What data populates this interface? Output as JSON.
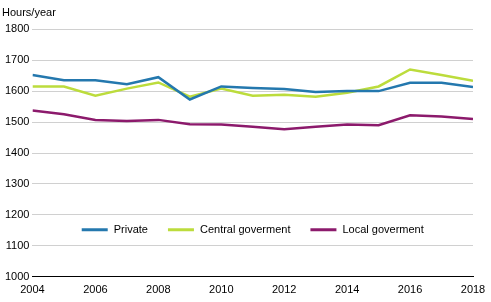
{
  "chart_data": {
    "type": "line",
    "ylabel": "Hours/year",
    "x": [
      2004,
      2005,
      2006,
      2007,
      2008,
      2009,
      2010,
      2011,
      2012,
      2013,
      2014,
      2015,
      2016,
      2017,
      2018
    ],
    "series": [
      {
        "name": "Private",
        "color": "#2478ae",
        "values": [
          1652,
          1635,
          1635,
          1622,
          1645,
          1573,
          1615,
          1610,
          1607,
          1597,
          1600,
          1600,
          1627,
          1627,
          1613
        ]
      },
      {
        "name": "Central goverment",
        "color": "#bcdc3c",
        "values": [
          1615,
          1615,
          1585,
          1608,
          1628,
          1582,
          1608,
          1585,
          1588,
          1582,
          1595,
          1615,
          1670,
          1652,
          1633
        ]
      },
      {
        "name": "Local goverment",
        "color": "#8c1a6c",
        "values": [
          1537,
          1525,
          1507,
          1503,
          1507,
          1493,
          1492,
          1485,
          1477,
          1485,
          1492,
          1490,
          1522,
          1518,
          1510
        ]
      }
    ],
    "xlim": [
      2004,
      2018
    ],
    "xticks": [
      2004,
      2006,
      2008,
      2010,
      2012,
      2014,
      2016,
      2018
    ],
    "ylim": [
      1000,
      1800
    ],
    "yticks": [
      1000,
      1100,
      1200,
      1300,
      1400,
      1500,
      1600,
      1700,
      1800
    ],
    "grid": true,
    "legend": "lower center"
  }
}
